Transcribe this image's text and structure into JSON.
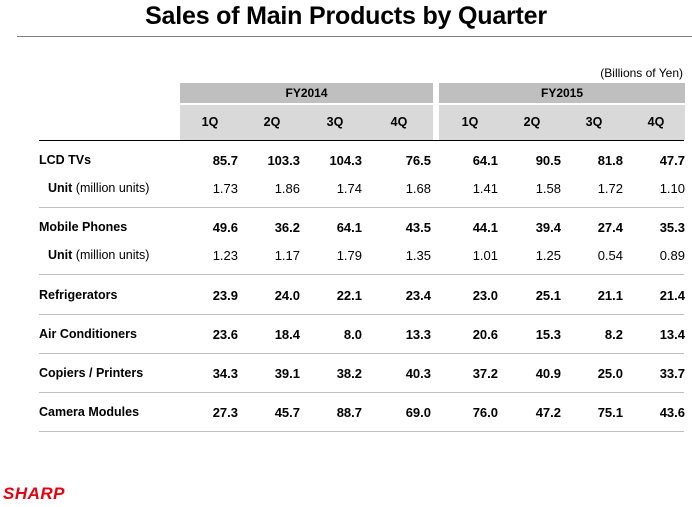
{
  "title": "Sales of Main Products by Quarter",
  "units_note": "(Billions of Yen)",
  "brand": {
    "logo_text": "SHARP",
    "color": "#e60012"
  },
  "fiscal_years": [
    "FY2014",
    "FY2015"
  ],
  "quarters": [
    "1Q",
    "2Q",
    "3Q",
    "4Q",
    "1Q",
    "2Q",
    "3Q",
    "4Q"
  ],
  "rows": [
    {
      "label": "LCD TVs",
      "values": [
        "85.7",
        "103.3",
        "104.3",
        "76.5",
        "64.1",
        "90.5",
        "81.8",
        "47.7"
      ]
    },
    {
      "label": "Unit",
      "unit_note": " (million units)",
      "values": [
        "1.73",
        "1.86",
        "1.74",
        "1.68",
        "1.41",
        "1.58",
        "1.72",
        "1.10"
      ]
    },
    {
      "label": "Mobile Phones",
      "values": [
        "49.6",
        "36.2",
        "64.1",
        "43.5",
        "44.1",
        "39.4",
        "27.4",
        "35.3"
      ]
    },
    {
      "label": "Unit",
      "unit_note": " (million units)",
      "values": [
        "1.23",
        "1.17",
        "1.79",
        "1.35",
        "1.01",
        "1.25",
        "0.54",
        "0.89"
      ]
    },
    {
      "label": "Refrigerators",
      "values": [
        "23.9",
        "24.0",
        "22.1",
        "23.4",
        "23.0",
        "25.1",
        "21.1",
        "21.4"
      ]
    },
    {
      "label": "Air Conditioners",
      "values": [
        "23.6",
        "18.4",
        "8.0",
        "13.3",
        "20.6",
        "15.3",
        "8.2",
        "13.4"
      ]
    },
    {
      "label": "Copiers / Printers",
      "values": [
        "34.3",
        "39.1",
        "38.2",
        "40.3",
        "37.2",
        "40.9",
        "25.0",
        "33.7"
      ]
    },
    {
      "label": "Camera Modules",
      "values": [
        "27.3",
        "45.7",
        "88.7",
        "69.0",
        "76.0",
        "47.2",
        "75.1",
        "43.6"
      ]
    }
  ]
}
